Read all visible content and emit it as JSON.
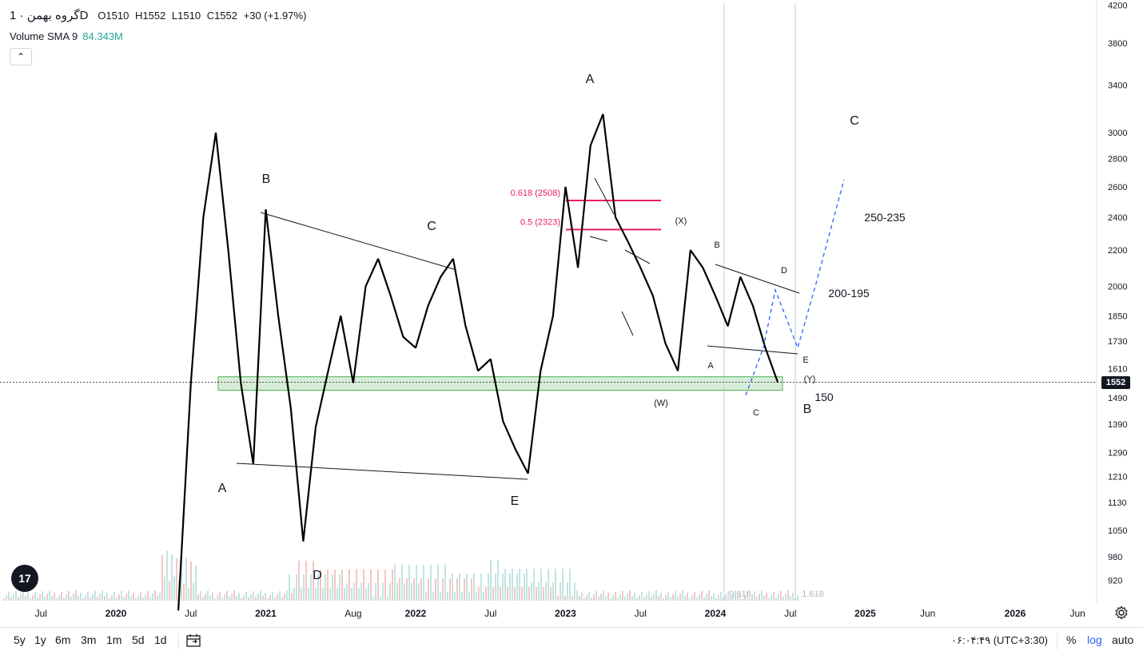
{
  "legend": {
    "symbol": "گروه بهمن",
    "sep": "·",
    "interval": "1D",
    "open": "O1510",
    "high": "H1552",
    "low": "L1510",
    "close": "C1552",
    "change": "+30 (+1.97%)"
  },
  "indicator": {
    "name": "Volume SMA 9",
    "value": "84.343M",
    "value_color": "#26a69a"
  },
  "collapse_icon": "chevron-up-icon",
  "collapse_glyph": "⌃",
  "logo_text": "17",
  "price_axis": {
    "labels": [
      "4200",
      "3800",
      "3400",
      "3000",
      "2800",
      "2600",
      "2400",
      "2200",
      "2000",
      "1850",
      "1730",
      "1610",
      "1490",
      "1390",
      "1290",
      "1210",
      "1130",
      "1050",
      "980",
      "920"
    ],
    "current_price": "1552"
  },
  "time_axis": {
    "labels": [
      "Jul",
      "2020",
      "Jul",
      "2021",
      "Aug",
      "2022",
      "Jul",
      "2023",
      "Jul",
      "2024",
      "Jul",
      "2025",
      "Jun",
      "2026",
      "Jun"
    ]
  },
  "chart_data": {
    "type": "line",
    "scale": "log",
    "series": [
      {
        "x": [
          "2020-06",
          "2020-07",
          "2020-08",
          "2020-09",
          "2020-10",
          "2020-11",
          "2020-12",
          "2021-01",
          "2021-02",
          "2021-03",
          "2021-04",
          "2021-05",
          "2021-06",
          "2021-07",
          "2021-08",
          "2021-09",
          "2021-10",
          "2021-11",
          "2021-12",
          "2022-01",
          "2022-02",
          "2022-03",
          "2022-04",
          "2022-05",
          "2022-06",
          "2022-07",
          "2022-08",
          "2022-09",
          "2022-10",
          "2022-11",
          "2022-12",
          "2023-01",
          "2023-02",
          "2023-03",
          "2023-04",
          "2023-05",
          "2023-06",
          "2023-07",
          "2023-08",
          "2023-09",
          "2023-10",
          "2023-11",
          "2023-12",
          "2024-01",
          "2024-02",
          "2024-03",
          "2024-04",
          "2024-05",
          "2024-06"
        ],
        "values": [
          850,
          1550,
          2400,
          3000,
          2200,
          1550,
          1250,
          2450,
          1850,
          1450,
          1020,
          1380,
          1600,
          1850,
          1550,
          2000,
          2150,
          1950,
          1750,
          1700,
          1900,
          2050,
          2150,
          1800,
          1600,
          1650,
          1400,
          1300,
          1220,
          1600,
          1850,
          2600,
          2100,
          2900,
          3150,
          2400,
          2250,
          2100,
          1950,
          1720,
          1600,
          2200,
          2100,
          1950,
          1800,
          2050,
          1900,
          1700,
          1552
        ]
      }
    ],
    "ylim": [
      900,
      4200
    ],
    "grid": false,
    "annotations": {
      "wave_labels": [
        "A",
        "B",
        "C",
        "D",
        "E",
        "A",
        "(X)",
        "B",
        "D",
        "A",
        "E",
        "(Y)",
        "(W)",
        "C",
        "B",
        "C"
      ],
      "fib_labels": [
        "0.618 (2508)",
        "0.5 (2323)"
      ],
      "fib_values": [
        2508,
        2323
      ],
      "support_zone": [
        1520,
        1575
      ],
      "targets": [
        "250-235",
        "200-195",
        "150"
      ],
      "projection_path": [
        1500,
        1700,
        1980,
        1700,
        2000,
        2650
      ],
      "watermark_labels": [
        "0.618",
        "1.618"
      ]
    }
  },
  "colors": {
    "fib": "#e91e63",
    "zone_fill": "#c8e6c9",
    "zone_stroke": "#4caf50",
    "projection": "#2962ff"
  },
  "bottom_bar": {
    "ranges": [
      "5y",
      "1y",
      "6m",
      "3m",
      "1m",
      "5d",
      "1d"
    ],
    "calendar_icon": "calendar-icon",
    "clock": "۰۶:۰۴:۴۹ (UTC+3:30)",
    "percent": "%",
    "log": "log",
    "auto": "auto"
  },
  "settings_icon": "settings-icon"
}
